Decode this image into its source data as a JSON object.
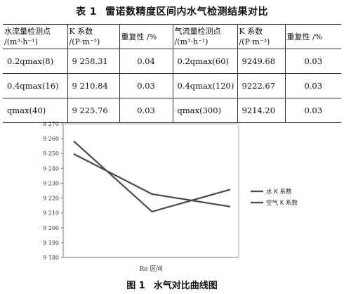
{
  "table": {
    "number": "表 1",
    "title": "雷诺数精度区间内水气检测结果对比",
    "headers": [
      "水流量检测点 /(m³·h⁻¹)",
      "K 系数 /(P·m⁻³)",
      "重复性 /%",
      "气流量检测点 /(m³·h⁻¹)",
      "K 系数 /(P·m⁻³)",
      "重复性 /%"
    ],
    "rows": [
      [
        "0.2qmax(8)",
        "9 258.31",
        "0.04",
        "0.2qmax(60)",
        "9249.68",
        "0.03"
      ],
      [
        "0.4qmax(16)",
        "9 210.84",
        "0.03",
        "0.4qmax(120)",
        "9222.67",
        "0.03"
      ],
      [
        "qmax(40)",
        "9 225.76",
        "0.03",
        "qmax(300)",
        "9214.20",
        "0.03"
      ]
    ]
  },
  "figure": {
    "number": "图 1",
    "title": "水气对比曲线图"
  },
  "chart_data": {
    "type": "line",
    "xlabel": "Re 区间",
    "ylabel": "",
    "ylim": [
      9180,
      9270
    ],
    "yticks": [
      "9 270",
      "9 260",
      "9 250",
      "9 240",
      "9 230",
      "9 220",
      "9 210",
      "9 200",
      "9 190",
      "9 180"
    ],
    "grid": false,
    "legend_position": "right",
    "x": [
      1,
      2,
      3
    ],
    "series": [
      {
        "name": "水 K 系数",
        "values": [
          9258.31,
          9210.84,
          9225.76
        ]
      },
      {
        "name": "空气 K 系数",
        "values": [
          9249.68,
          9222.67,
          9214.2
        ]
      }
    ],
    "colors": {
      "series": "#4a4a4a",
      "axis": "#777777"
    }
  }
}
